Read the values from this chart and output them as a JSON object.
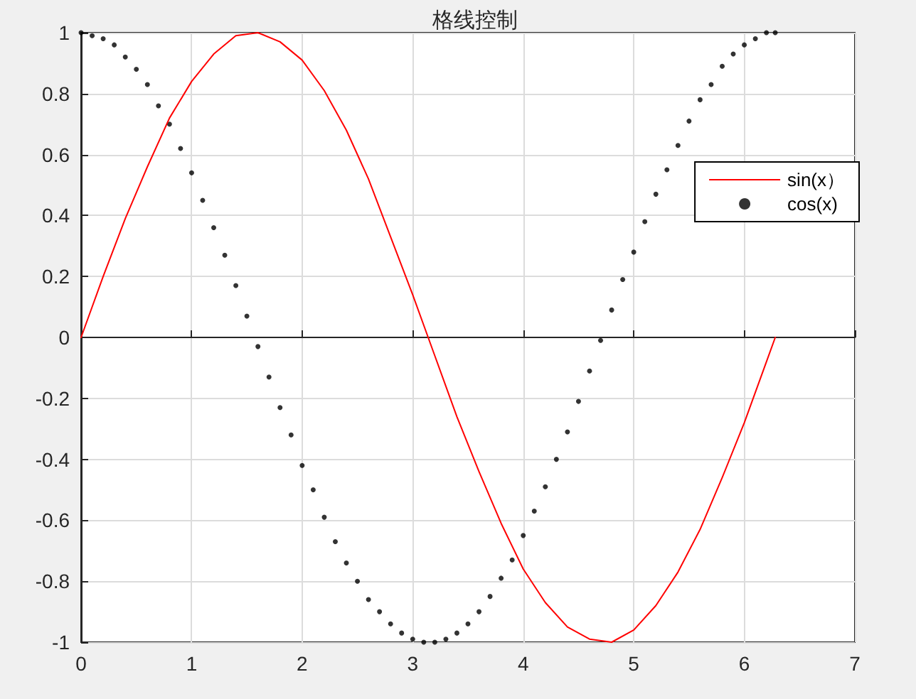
{
  "chart_data": {
    "type": "line",
    "title": "格线控制",
    "xlim": [
      0,
      7
    ],
    "xticks": [
      0,
      1,
      2,
      3,
      4,
      5,
      6,
      7
    ],
    "ylim": [
      -1,
      1
    ],
    "yticks": [
      -1,
      -0.8,
      -0.6,
      -0.4,
      -0.2,
      0,
      0.2,
      0.4,
      0.6,
      0.8,
      1
    ],
    "grid": true,
    "legend": "top right",
    "series": [
      {
        "name": "sin(x）",
        "color": "#ff0000",
        "marker": "none",
        "line_style": "solid",
        "x": [
          0,
          0.2,
          0.4,
          0.6,
          0.8,
          1.0,
          1.2,
          1.4,
          1.6,
          1.8,
          2.0,
          2.2,
          2.4,
          2.6,
          2.8,
          3.0,
          3.2,
          3.4,
          3.6,
          3.8,
          4.0,
          4.2,
          4.4,
          4.6,
          4.8,
          5.0,
          5.2,
          5.4,
          5.6,
          5.8,
          6.0,
          6.2,
          6.28
        ],
        "values": [
          0,
          0.2,
          0.39,
          0.56,
          0.72,
          0.84,
          0.93,
          0.99,
          1.0,
          0.97,
          0.91,
          0.81,
          0.68,
          0.52,
          0.33,
          0.14,
          -0.06,
          -0.26,
          -0.44,
          -0.61,
          -0.76,
          -0.87,
          -0.95,
          -0.99,
          -1.0,
          -0.96,
          -0.88,
          -0.77,
          -0.63,
          -0.46,
          -0.28,
          -0.08,
          0
        ]
      },
      {
        "name": "cos(x)",
        "type": "scatter",
        "color": "#000000",
        "marker": "circle",
        "x": [
          0,
          0.1,
          0.2,
          0.3,
          0.4,
          0.5,
          0.6,
          0.7,
          0.8,
          0.9,
          1.0,
          1.1,
          1.2,
          1.3,
          1.4,
          1.5,
          1.6,
          1.7,
          1.8,
          1.9,
          2.0,
          2.1,
          2.2,
          2.3,
          2.4,
          2.5,
          2.6,
          2.7,
          2.8,
          2.9,
          3.0,
          3.1,
          3.2,
          3.3,
          3.4,
          3.5,
          3.6,
          3.7,
          3.8,
          3.9,
          4.0,
          4.1,
          4.2,
          4.3,
          4.4,
          4.5,
          4.6,
          4.7,
          4.8,
          4.9,
          5.0,
          5.1,
          5.2,
          5.3,
          5.4,
          5.5,
          5.6,
          5.7,
          5.8,
          5.9,
          6.0,
          6.1,
          6.2,
          6.28
        ],
        "values": [
          1,
          0.99,
          0.98,
          0.96,
          0.92,
          0.88,
          0.83,
          0.76,
          0.7,
          0.62,
          0.54,
          0.45,
          0.36,
          0.27,
          0.17,
          0.07,
          -0.03,
          -0.13,
          -0.23,
          -0.32,
          -0.42,
          -0.5,
          -0.59,
          -0.67,
          -0.74,
          -0.8,
          -0.86,
          -0.9,
          -0.94,
          -0.97,
          -0.99,
          -1.0,
          -1.0,
          -0.99,
          -0.97,
          -0.94,
          -0.9,
          -0.85,
          -0.79,
          -0.73,
          -0.65,
          -0.57,
          -0.49,
          -0.4,
          -0.31,
          -0.21,
          -0.11,
          -0.01,
          0.09,
          0.19,
          0.28,
          0.38,
          0.47,
          0.55,
          0.63,
          0.71,
          0.78,
          0.83,
          0.89,
          0.93,
          0.96,
          0.98,
          1.0,
          1.0
        ]
      }
    ]
  }
}
